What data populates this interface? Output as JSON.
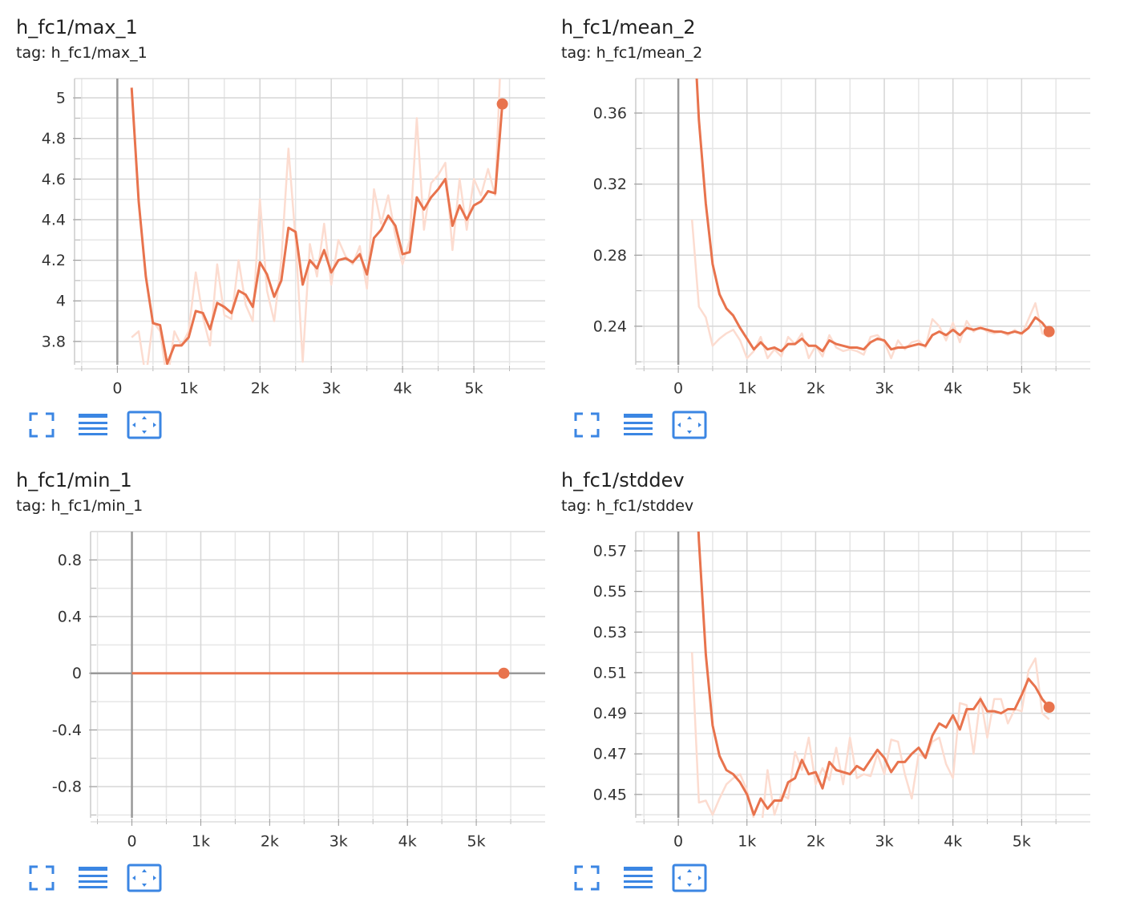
{
  "chart_data": [
    {
      "type": "line",
      "title": "h_fc1/max_1",
      "subtitle": "tag: h_fc1/max_1",
      "x": [
        200,
        300,
        400,
        500,
        600,
        700,
        800,
        900,
        1000,
        1100,
        1200,
        1300,
        1400,
        1500,
        1600,
        1700,
        1800,
        1900,
        2000,
        2100,
        2200,
        2300,
        2400,
        2500,
        2600,
        2700,
        2800,
        2900,
        3000,
        3100,
        3200,
        3300,
        3400,
        3500,
        3600,
        3700,
        3800,
        3900,
        4000,
        4100,
        4200,
        4300,
        4400,
        4500,
        4600,
        4700,
        4800,
        4900,
        5000,
        5100,
        5200,
        5300,
        5400
      ],
      "series": [
        {
          "color": "#fcdcd0",
          "values": [
            3.82,
            3.85,
            3.62,
            3.9,
            3.85,
            3.6,
            3.85,
            3.78,
            3.85,
            4.14,
            3.92,
            3.78,
            4.18,
            3.93,
            3.91,
            4.2,
            3.98,
            3.9,
            4.5,
            4.05,
            3.9,
            4.2,
            4.75,
            4.3,
            3.7,
            4.28,
            4.12,
            4.38,
            4.08,
            4.3,
            4.22,
            4.18,
            4.27,
            4.06,
            4.55,
            4.38,
            4.52,
            4.32,
            4.18,
            4.3,
            4.9,
            4.35,
            4.58,
            4.62,
            4.68,
            4.25,
            4.6,
            4.35,
            4.6,
            4.52,
            4.65,
            4.52,
            5.4
          ]
        },
        {
          "color": "#e8734d",
          "values": [
            5.05,
            4.49,
            4.12,
            3.89,
            3.88,
            3.69,
            3.78,
            3.78,
            3.82,
            3.95,
            3.94,
            3.86,
            3.99,
            3.97,
            3.94,
            4.05,
            4.03,
            3.97,
            4.19,
            4.13,
            4.02,
            4.1,
            4.36,
            4.34,
            4.08,
            4.2,
            4.16,
            4.25,
            4.14,
            4.2,
            4.21,
            4.19,
            4.23,
            4.13,
            4.31,
            4.35,
            4.42,
            4.37,
            4.23,
            4.24,
            4.51,
            4.45,
            4.51,
            4.55,
            4.6,
            4.37,
            4.47,
            4.4,
            4.47,
            4.49,
            4.54,
            4.53,
            4.97
          ]
        }
      ],
      "xlim": [
        -600,
        6000
      ],
      "xticks": [
        0,
        {
          "value": 1000,
          "label": "1k"
        },
        {
          "value": 2000,
          "label": "2k"
        },
        {
          "value": 3000,
          "label": "3k"
        },
        {
          "value": 4000,
          "label": "4k"
        },
        {
          "value": 5000,
          "label": "5k"
        }
      ],
      "ylim": [
        3.685,
        5.095
      ],
      "yticks": [
        3.8,
        4,
        4.2,
        4.4,
        4.6,
        4.8,
        5
      ],
      "grid": true
    },
    {
      "type": "line",
      "title": "h_fc1/mean_2",
      "subtitle": "tag: h_fc1/mean_2",
      "x": [
        200,
        300,
        400,
        500,
        600,
        700,
        800,
        900,
        1000,
        1100,
        1200,
        1300,
        1400,
        1500,
        1600,
        1700,
        1800,
        1900,
        2000,
        2100,
        2200,
        2300,
        2400,
        2500,
        2600,
        2700,
        2800,
        2900,
        3000,
        3100,
        3200,
        3300,
        3400,
        3500,
        3600,
        3700,
        3800,
        3900,
        4000,
        4100,
        4200,
        4300,
        4400,
        4500,
        4600,
        4700,
        4800,
        4900,
        5000,
        5100,
        5200,
        5300,
        5400
      ],
      "series": [
        {
          "color": "#fcdcd0",
          "values": [
            0.3,
            0.251,
            0.245,
            0.229,
            0.233,
            0.236,
            0.238,
            0.232,
            0.222,
            0.226,
            0.234,
            0.222,
            0.227,
            0.223,
            0.234,
            0.23,
            0.236,
            0.222,
            0.229,
            0.223,
            0.235,
            0.228,
            0.226,
            0.227,
            0.226,
            0.224,
            0.234,
            0.235,
            0.231,
            0.222,
            0.232,
            0.227,
            0.231,
            0.232,
            0.228,
            0.244,
            0.24,
            0.232,
            0.242,
            0.231,
            0.243,
            0.237,
            0.24,
            0.237,
            0.236,
            0.237,
            0.235,
            0.238,
            0.235,
            0.244,
            0.253,
            0.236,
            0.234
          ]
        },
        {
          "color": "#e8734d",
          "values": [
            0.43,
            0.356,
            0.309,
            0.275,
            0.258,
            0.25,
            0.246,
            0.239,
            0.233,
            0.227,
            0.231,
            0.227,
            0.228,
            0.226,
            0.23,
            0.23,
            0.233,
            0.229,
            0.229,
            0.226,
            0.232,
            0.23,
            0.229,
            0.228,
            0.228,
            0.227,
            0.231,
            0.233,
            0.232,
            0.227,
            0.228,
            0.228,
            0.229,
            0.23,
            0.229,
            0.235,
            0.237,
            0.235,
            0.238,
            0.235,
            0.239,
            0.238,
            0.239,
            0.238,
            0.237,
            0.237,
            0.236,
            0.237,
            0.236,
            0.239,
            0.245,
            0.242,
            0.237
          ]
        }
      ],
      "xlim": [
        -620,
        6000
      ],
      "xticks": [
        0,
        {
          "value": 1000,
          "label": "1k"
        },
        {
          "value": 2000,
          "label": "2k"
        },
        {
          "value": 3000,
          "label": "3k"
        },
        {
          "value": 4000,
          "label": "4k"
        },
        {
          "value": 5000,
          "label": "5k"
        }
      ],
      "ylim": [
        0.2183,
        0.3794
      ],
      "yticks": [
        0.24,
        0.28,
        0.32,
        0.36
      ],
      "grid": true
    },
    {
      "type": "line",
      "title": "h_fc1/min_1",
      "subtitle": "tag: h_fc1/min_1",
      "x": [
        0,
        100,
        200,
        300,
        400,
        500,
        600,
        700,
        800,
        900,
        1000,
        1100,
        1200,
        1300,
        1400,
        1500,
        1600,
        1700,
        1800,
        1900,
        2000,
        2100,
        2200,
        2300,
        2400,
        2500,
        2600,
        2700,
        2800,
        2900,
        3000,
        3100,
        3200,
        3300,
        3400,
        3500,
        3600,
        3700,
        3800,
        3900,
        4000,
        4100,
        4200,
        4300,
        4400,
        4500,
        4600,
        4700,
        4800,
        4900,
        5000,
        5100,
        5200,
        5300,
        5400
      ],
      "series": [
        {
          "color": "#e8734d",
          "values": [
            0,
            0,
            0,
            0,
            0,
            0,
            0,
            0,
            0,
            0,
            0,
            0,
            0,
            0,
            0,
            0,
            0,
            0,
            0,
            0,
            0,
            0,
            0,
            0,
            0,
            0,
            0,
            0,
            0,
            0,
            0,
            0,
            0,
            0,
            0,
            0,
            0,
            0,
            0,
            0,
            0,
            0,
            0,
            0,
            0,
            0,
            0,
            0,
            0,
            0,
            0,
            0,
            0,
            0,
            0
          ]
        }
      ],
      "xlim": [
        -600,
        6000
      ],
      "xticks": [
        0,
        {
          "value": 1000,
          "label": "1k"
        },
        {
          "value": 2000,
          "label": "2k"
        },
        {
          "value": 3000,
          "label": "3k"
        },
        {
          "value": 4000,
          "label": "4k"
        },
        {
          "value": 5000,
          "label": "5k"
        }
      ],
      "ylim": [
        -1.02,
        1.0
      ],
      "yticks": [
        -0.8,
        -0.4,
        0,
        0.4,
        0.8
      ],
      "grid": true
    },
    {
      "type": "line",
      "title": "h_fc1/stddev",
      "subtitle": "tag: h_fc1/stddev",
      "x": [
        200,
        300,
        400,
        500,
        600,
        700,
        800,
        900,
        1000,
        1100,
        1200,
        1300,
        1400,
        1500,
        1600,
        1700,
        1800,
        1900,
        2000,
        2100,
        2200,
        2300,
        2400,
        2500,
        2600,
        2700,
        2800,
        2900,
        3000,
        3100,
        3200,
        3300,
        3400,
        3500,
        3600,
        3700,
        3800,
        3900,
        4000,
        4100,
        4200,
        4300,
        4400,
        4500,
        4600,
        4700,
        4800,
        4900,
        5000,
        5100,
        5200,
        5300,
        5400
      ],
      "series": [
        {
          "color": "#fcdcd0",
          "values": [
            0.52,
            0.446,
            0.447,
            0.44,
            0.448,
            0.455,
            0.458,
            0.46,
            0.452,
            0.438,
            0.43,
            0.462,
            0.44,
            0.45,
            0.448,
            0.471,
            0.462,
            0.478,
            0.455,
            0.463,
            0.457,
            0.473,
            0.455,
            0.478,
            0.458,
            0.46,
            0.459,
            0.47,
            0.46,
            0.477,
            0.476,
            0.46,
            0.448,
            0.47,
            0.468,
            0.476,
            0.478,
            0.465,
            0.458,
            0.495,
            0.494,
            0.47,
            0.498,
            0.478,
            0.497,
            0.497,
            0.485,
            0.492,
            0.491,
            0.511,
            0.517,
            0.49,
            0.487
          ]
        },
        {
          "color": "#e8734d",
          "values": [
            0.65,
            0.575,
            0.519,
            0.484,
            0.469,
            0.462,
            0.46,
            0.456,
            0.45,
            0.44,
            0.448,
            0.443,
            0.447,
            0.447,
            0.456,
            0.458,
            0.467,
            0.46,
            0.461,
            0.453,
            0.466,
            0.462,
            0.461,
            0.46,
            0.464,
            0.462,
            0.467,
            0.472,
            0.468,
            0.461,
            0.466,
            0.466,
            0.47,
            0.473,
            0.468,
            0.479,
            0.485,
            0.483,
            0.489,
            0.482,
            0.492,
            0.492,
            0.497,
            0.491,
            0.491,
            0.49,
            0.492,
            0.492,
            0.499,
            0.507,
            0.503,
            0.497,
            0.493
          ]
        }
      ],
      "xlim": [
        -620,
        6000
      ],
      "xticks": [
        0,
        {
          "value": 1000,
          "label": "1k"
        },
        {
          "value": 2000,
          "label": "2k"
        },
        {
          "value": 3000,
          "label": "3k"
        },
        {
          "value": 4000,
          "label": "4k"
        },
        {
          "value": 5000,
          "label": "5k"
        }
      ],
      "ylim": [
        0.4385,
        0.5795
      ],
      "yticks": [
        0.45,
        0.47,
        0.49,
        0.51,
        0.53,
        0.55,
        0.57
      ],
      "grid": true
    }
  ]
}
